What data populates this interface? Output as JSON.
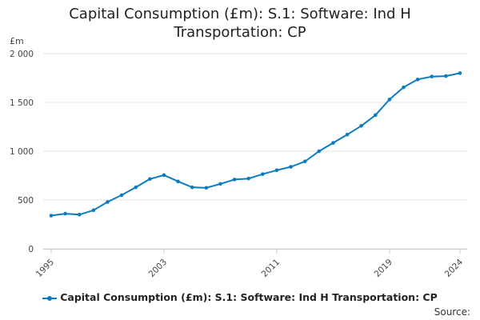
{
  "colors": {
    "series": "#0b7cc0",
    "grid": "#e6e6e6",
    "axis": "#cccccc",
    "text": "#444444"
  },
  "source": {
    "label": "Source:"
  },
  "chart_data": {
    "type": "line",
    "title_lines": [
      "Capital Consumption (£m): S.1: Software: Ind H",
      "Transportation: CP"
    ],
    "ylabel": "£m",
    "ylim": [
      0,
      2000
    ],
    "yticks": [
      0,
      500,
      1000,
      1500,
      2000
    ],
    "ytick_labels": [
      "0",
      "500",
      "1 000",
      "1 500",
      "2 000"
    ],
    "xlim": [
      1995,
      2024
    ],
    "xticks": [
      1995,
      2003,
      2011,
      2019,
      2024
    ],
    "xtick_labels": [
      "1995",
      "2003",
      "2011",
      "2019",
      "2024"
    ],
    "grid": true,
    "legend_position": "bottom",
    "series": [
      {
        "name": "Capital Consumption (£m): S.1: Software: Ind H Transportation: CP",
        "x": [
          1995,
          1996,
          1997,
          1998,
          1999,
          2000,
          2001,
          2002,
          2003,
          2004,
          2005,
          2006,
          2007,
          2008,
          2009,
          2010,
          2011,
          2012,
          2013,
          2014,
          2015,
          2016,
          2017,
          2018,
          2019,
          2020,
          2021,
          2022,
          2023,
          2024
        ],
        "values": [
          340,
          360,
          350,
          395,
          480,
          550,
          630,
          715,
          755,
          690,
          630,
          625,
          665,
          710,
          720,
          765,
          805,
          840,
          895,
          1000,
          1085,
          1170,
          1260,
          1370,
          1530,
          1655,
          1735,
          1765,
          1770,
          1800
        ]
      }
    ]
  }
}
